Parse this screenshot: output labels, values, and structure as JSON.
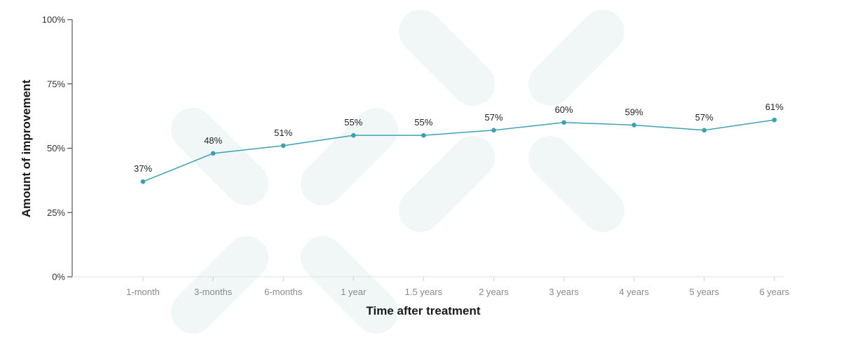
{
  "chart_data": {
    "type": "line",
    "title": "",
    "xlabel": "Time after treatment",
    "ylabel": "Amount of improvement",
    "categories": [
      "1-month",
      "3-months",
      "6-months",
      "1 year",
      "1.5 years",
      "2 years",
      "3 years",
      "4 years",
      "5 years",
      "6 years"
    ],
    "series": [
      {
        "values": [
          37,
          48,
          51,
          55,
          55,
          57,
          60,
          59,
          57,
          61
        ],
        "data_labels": [
          "37%",
          "48%",
          "51%",
          "55%",
          "55%",
          "57%",
          "60%",
          "59%",
          "57%",
          "61%"
        ]
      }
    ],
    "ylim": [
      0,
      100
    ],
    "y_ticks": [
      {
        "value": 0,
        "label": "0%"
      },
      {
        "value": 25,
        "label": "25%"
      },
      {
        "value": 50,
        "label": "50%"
      },
      {
        "value": 75,
        "label": "75%"
      },
      {
        "value": 100,
        "label": "100%"
      }
    ],
    "grid": false,
    "legend": "none",
    "line_color": "#3aa1b5",
    "watermark_color": "#f1f6f6"
  }
}
